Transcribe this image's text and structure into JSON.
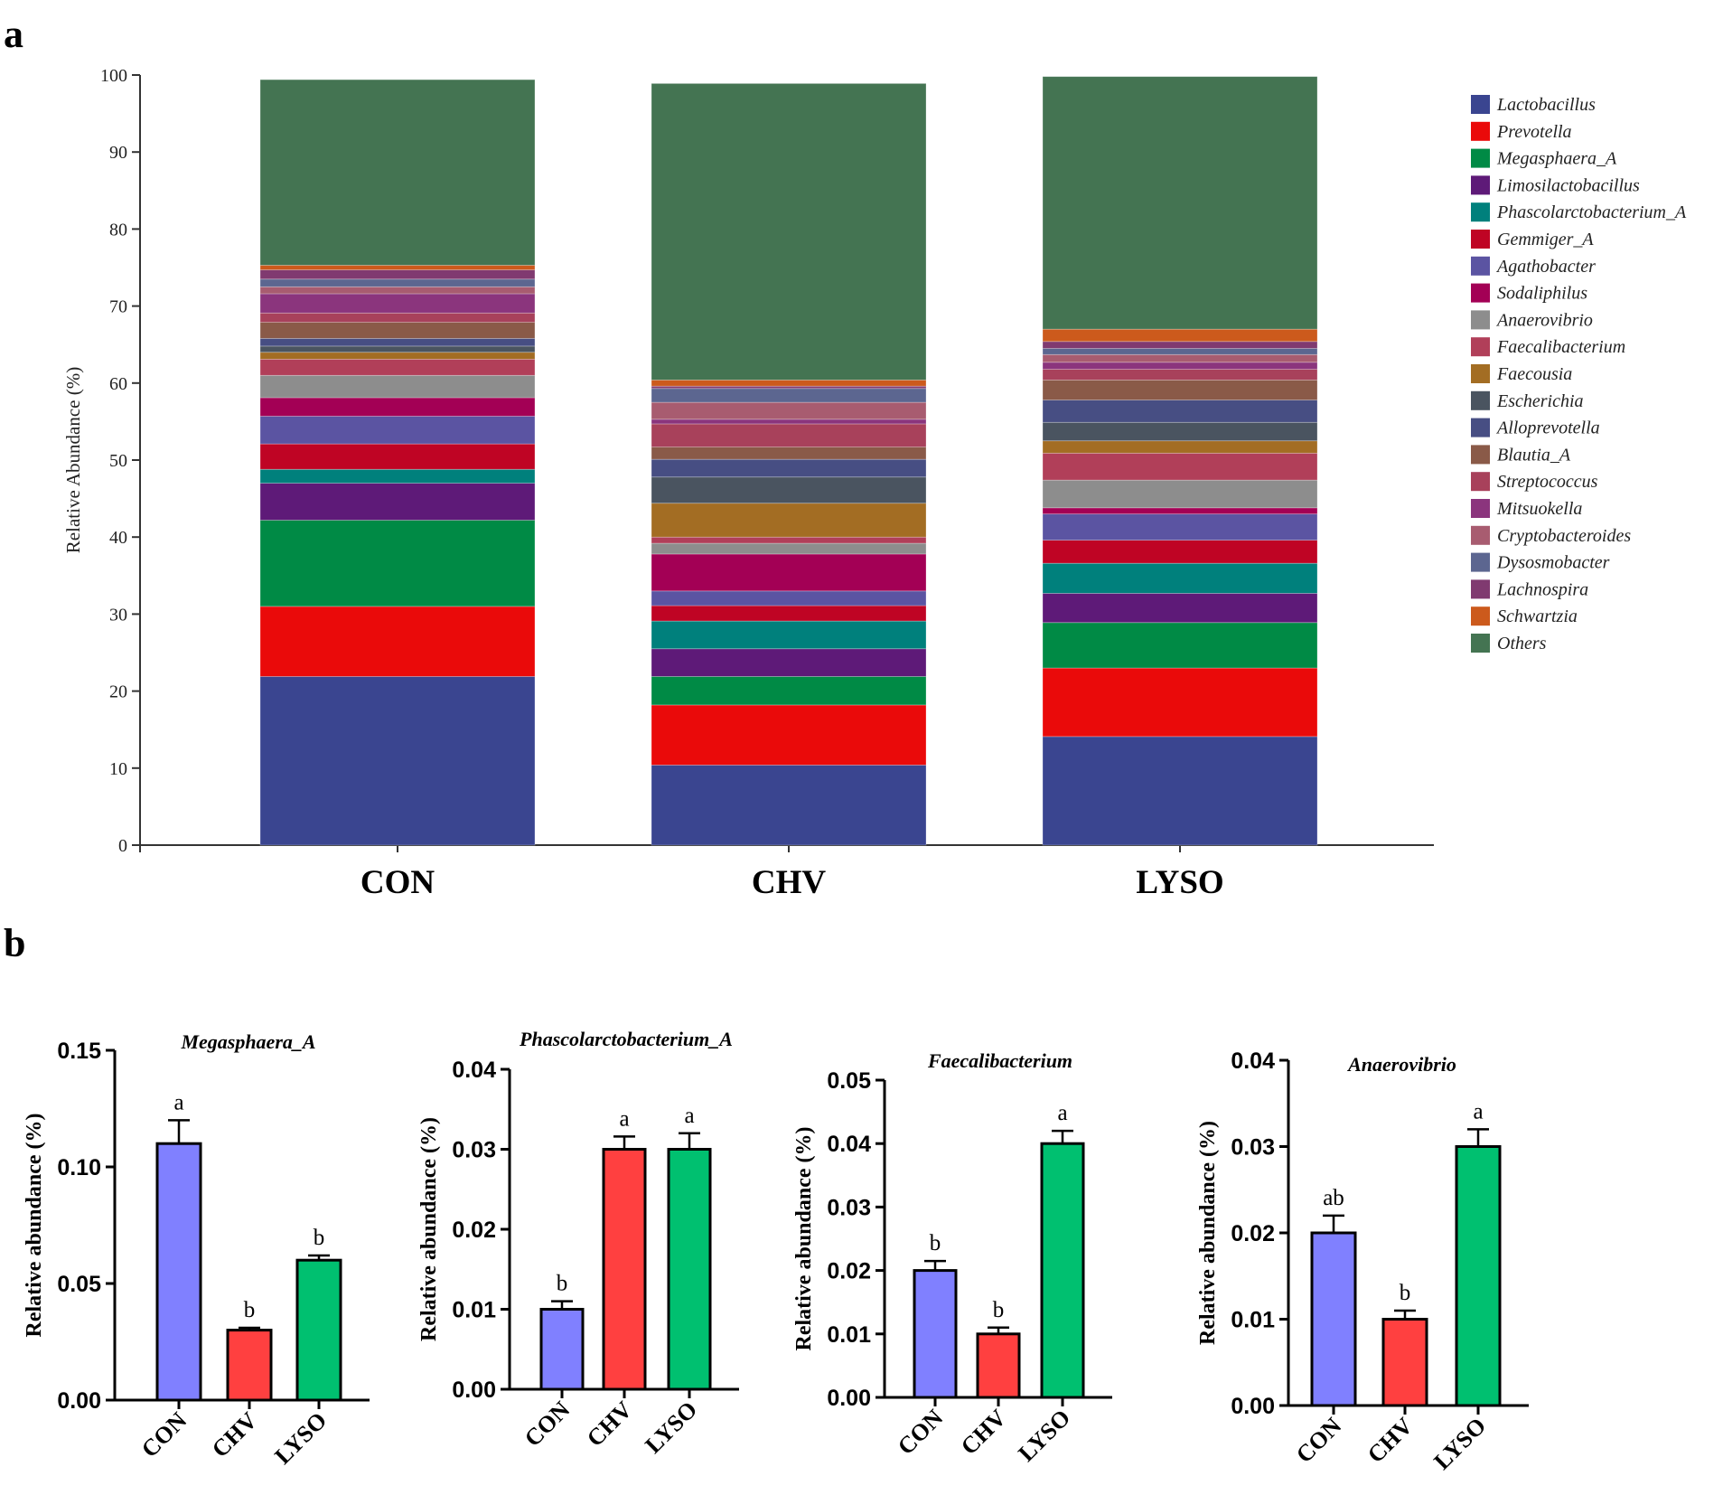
{
  "panel_labels": {
    "a": "a",
    "b": "b"
  },
  "chart_data": [
    {
      "type": "bar",
      "subtype": "stacked-percent",
      "title": "",
      "xlabel": "",
      "ylabel": "Relative Abundance (%)",
      "ylim": [
        0,
        100
      ],
      "yticks": [
        "0",
        "10",
        "20",
        "30",
        "40",
        "50",
        "60",
        "70",
        "80",
        "90",
        "100"
      ],
      "legend_position": "right",
      "categories": [
        "CON",
        "CHV",
        "LYSO"
      ],
      "series": [
        {
          "name": "Lactobacillus",
          "color": "#3a4590",
          "values": [
            21.9,
            10.4,
            14.1
          ]
        },
        {
          "name": "Prevotella",
          "color": "#ea0a0a",
          "values": [
            9.1,
            7.8,
            8.9
          ]
        },
        {
          "name": "Megasphaera_A",
          "color": "#008a45",
          "values": [
            11.2,
            3.7,
            5.9
          ]
        },
        {
          "name": "Limosilactobacillus",
          "color": "#5e1a78",
          "values": [
            4.8,
            3.6,
            3.8
          ]
        },
        {
          "name": "Phascolarctobacterium_A",
          "color": "#00807c",
          "values": [
            1.8,
            3.6,
            3.9
          ]
        },
        {
          "name": "Gemmiger_A",
          "color": "#bf0424",
          "values": [
            3.3,
            2.0,
            3.0
          ]
        },
        {
          "name": "Agathobacter",
          "color": "#5b54a2",
          "values": [
            3.6,
            1.9,
            3.4
          ]
        },
        {
          "name": "Sodaliphilus",
          "color": "#a30055",
          "values": [
            2.4,
            4.8,
            0.8
          ]
        },
        {
          "name": "Anaerovibrio",
          "color": "#8d8d8d",
          "values": [
            2.9,
            1.4,
            3.6
          ]
        },
        {
          "name": "Faecalibacterium",
          "color": "#b13f59",
          "values": [
            2.1,
            0.8,
            3.5
          ]
        },
        {
          "name": "Faecousia",
          "color": "#a36d23",
          "values": [
            0.9,
            4.4,
            1.6
          ]
        },
        {
          "name": "Escherichia",
          "color": "#4a5460",
          "values": [
            0.8,
            3.4,
            2.4
          ]
        },
        {
          "name": "Alloprevotella",
          "color": "#474e83",
          "values": [
            1.0,
            2.3,
            2.9
          ]
        },
        {
          "name": "Blautia_A",
          "color": "#8a5a48",
          "values": [
            2.1,
            1.6,
            2.6
          ]
        },
        {
          "name": "Streptococcus",
          "color": "#a8415b",
          "values": [
            1.2,
            3.0,
            1.4
          ]
        },
        {
          "name": "Mitsuokella",
          "color": "#8b357d",
          "values": [
            2.5,
            0.6,
            0.9
          ]
        },
        {
          "name": "Cryptobacteroides",
          "color": "#a85c70",
          "values": [
            0.9,
            2.2,
            1.0
          ]
        },
        {
          "name": "Dysosmobacter",
          "color": "#5c6690",
          "values": [
            1.0,
            1.8,
            0.8
          ]
        },
        {
          "name": "Lachnospira",
          "color": "#803a70",
          "values": [
            1.2,
            0.3,
            0.9
          ]
        },
        {
          "name": "Schwartzia",
          "color": "#cc5a1c",
          "values": [
            0.6,
            0.8,
            1.6
          ]
        },
        {
          "name": "Others",
          "color": "#447452",
          "values": [
            24.1,
            38.5,
            32.8
          ]
        }
      ]
    },
    {
      "type": "bar",
      "title": "Megasphaera_A",
      "xlabel": "",
      "ylabel": "Relative abundance (%)",
      "ylim": [
        0,
        0.15
      ],
      "yticks": [
        "0.00",
        "0.05",
        "0.10",
        "0.15"
      ],
      "categories": [
        "CON",
        "CHV",
        "LYSO"
      ],
      "colors": [
        "#8080ff",
        "#ff4040",
        "#00c070"
      ],
      "values": [
        0.11,
        0.03,
        0.06
      ],
      "errors": [
        0.01,
        0.001,
        0.002
      ],
      "significance_letters": [
        "a",
        "b",
        "b"
      ]
    },
    {
      "type": "bar",
      "title": "Phascolarctobacterium_A",
      "xlabel": "",
      "ylabel": "Relative abundance (%)",
      "ylim": [
        0,
        0.04
      ],
      "yticks": [
        "0.00",
        "0.01",
        "0.02",
        "0.03",
        "0.04"
      ],
      "categories": [
        "CON",
        "CHV",
        "LYSO"
      ],
      "colors": [
        "#8080ff",
        "#ff4040",
        "#00c070"
      ],
      "values": [
        0.01,
        0.03,
        0.03
      ],
      "errors": [
        0.001,
        0.0016,
        0.002
      ],
      "significance_letters": [
        "b",
        "a",
        "a"
      ]
    },
    {
      "type": "bar",
      "title": "Faecalibacterium",
      "xlabel": "",
      "ylabel": "Relative abundance (%)",
      "ylim": [
        0,
        0.05
      ],
      "yticks": [
        "0.00",
        "0.01",
        "0.02",
        "0.03",
        "0.04",
        "0.05"
      ],
      "categories": [
        "CON",
        "CHV",
        "LYSO"
      ],
      "colors": [
        "#8080ff",
        "#ff4040",
        "#00c070"
      ],
      "values": [
        0.02,
        0.01,
        0.04
      ],
      "errors": [
        0.0015,
        0.001,
        0.002
      ],
      "significance_letters": [
        "b",
        "b",
        "a"
      ]
    },
    {
      "type": "bar",
      "title": "Anaerovibrio",
      "xlabel": "",
      "ylabel": "Relative abundance (%)",
      "ylim": [
        0,
        0.04
      ],
      "yticks": [
        "0.00",
        "0.01",
        "0.02",
        "0.03",
        "0.04"
      ],
      "categories": [
        "CON",
        "CHV",
        "LYSO"
      ],
      "colors": [
        "#8080ff",
        "#ff4040",
        "#00c070"
      ],
      "values": [
        0.02,
        0.01,
        0.03
      ],
      "errors": [
        0.002,
        0.001,
        0.002
      ],
      "significance_letters": [
        "ab",
        "b",
        "a"
      ]
    }
  ]
}
